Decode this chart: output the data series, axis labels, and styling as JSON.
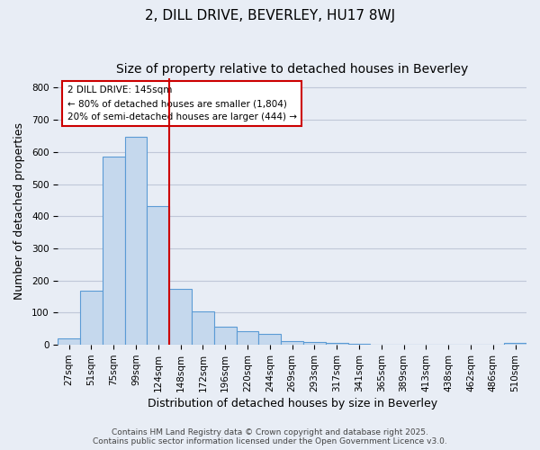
{
  "title": "2, DILL DRIVE, BEVERLEY, HU17 8WJ",
  "subtitle": "Size of property relative to detached houses in Beverley",
  "xlabel": "Distribution of detached houses by size in Beverley",
  "ylabel": "Number of detached properties",
  "bar_labels": [
    "27sqm",
    "51sqm",
    "75sqm",
    "99sqm",
    "124sqm",
    "148sqm",
    "172sqm",
    "196sqm",
    "220sqm",
    "244sqm",
    "269sqm",
    "293sqm",
    "317sqm",
    "341sqm",
    "365sqm",
    "389sqm",
    "413sqm",
    "438sqm",
    "462sqm",
    "486sqm",
    "510sqm"
  ],
  "bar_heights": [
    20,
    168,
    585,
    648,
    432,
    173,
    103,
    57,
    42,
    33,
    13,
    10,
    7,
    3,
    0,
    0,
    0,
    0,
    0,
    0,
    5
  ],
  "bar_color": "#c5d8ed",
  "bar_edge_color": "#5b9bd5",
  "vline_index": 5,
  "annotation_title": "2 DILL DRIVE: 145sqm",
  "annotation_line1": "← 80% of detached houses are smaller (1,804)",
  "annotation_line2": "20% of semi-detached houses are larger (444) →",
  "annotation_box_color": "#ffffff",
  "annotation_box_edge_color": "#cc0000",
  "vline_color": "#cc0000",
  "ylim": [
    0,
    830
  ],
  "yticks": [
    0,
    100,
    200,
    300,
    400,
    500,
    600,
    700,
    800
  ],
  "grid_color": "#c0c8d8",
  "background_color": "#e8edf5",
  "footer_line1": "Contains HM Land Registry data © Crown copyright and database right 2025.",
  "footer_line2": "Contains public sector information licensed under the Open Government Licence v3.0.",
  "title_fontsize": 11,
  "subtitle_fontsize": 10,
  "axis_label_fontsize": 9,
  "tick_fontsize": 7.5,
  "footer_fontsize": 6.5
}
